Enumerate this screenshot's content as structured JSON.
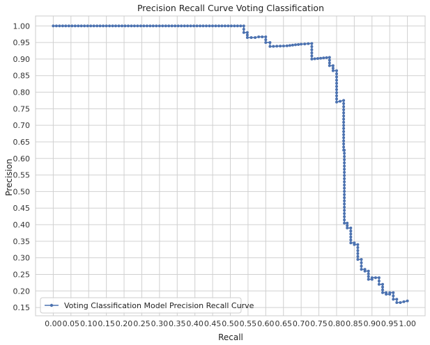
{
  "chart_data": {
    "type": "line",
    "title": "Precision Recall Curve Voting Classification",
    "xlabel": "Recall",
    "ylabel": "Precision",
    "xlim": [
      -0.05,
      1.05
    ],
    "ylim": [
      0.125,
      1.03
    ],
    "xticks": [
      "0.00",
      "0.05",
      "0.10",
      "0.15",
      "0.20",
      "0.25",
      "0.30",
      "0.35",
      "0.40",
      "0.45",
      "0.50",
      "0.55",
      "0.60",
      "0.65",
      "0.70",
      "0.75",
      "0.80",
      "0.85",
      "0.90",
      "0.95",
      "1.00"
    ],
    "yticks": [
      "0.15",
      "0.20",
      "0.25",
      "0.30",
      "0.35",
      "0.40",
      "0.45",
      "0.50",
      "0.55",
      "0.60",
      "0.65",
      "0.70",
      "0.75",
      "0.80",
      "0.85",
      "0.90",
      "0.95",
      "1.00"
    ],
    "grid": true,
    "legend_position": "lower-left",
    "series_color": "#4c72b0",
    "series": [
      {
        "name": "Voting Classification Model Precision Recall Curve",
        "x": [
          0.0,
          0.538,
          0.538,
          0.548,
          0.548,
          0.57,
          0.58,
          0.6,
          0.6,
          0.612,
          0.612,
          0.66,
          0.7,
          0.73,
          0.73,
          0.78,
          0.78,
          0.79,
          0.79,
          0.8,
          0.8,
          0.82,
          0.82,
          0.822,
          0.822,
          0.83,
          0.83,
          0.84,
          0.84,
          0.85,
          0.85,
          0.86,
          0.86,
          0.87,
          0.87,
          0.88,
          0.88,
          0.89,
          0.89,
          0.9,
          0.9,
          0.92,
          0.92,
          0.93,
          0.93,
          0.94,
          0.94,
          0.95,
          0.95,
          0.96,
          0.96,
          0.97,
          0.97,
          0.98,
          1.0
        ],
        "y": [
          1.0,
          1.0,
          0.98,
          0.98,
          0.965,
          0.965,
          0.967,
          0.967,
          0.95,
          0.95,
          0.938,
          0.94,
          0.945,
          0.947,
          0.9,
          0.905,
          0.88,
          0.88,
          0.865,
          0.865,
          0.77,
          0.775,
          0.625,
          0.625,
          0.405,
          0.405,
          0.39,
          0.39,
          0.345,
          0.345,
          0.34,
          0.34,
          0.295,
          0.295,
          0.265,
          0.265,
          0.26,
          0.26,
          0.235,
          0.235,
          0.24,
          0.24,
          0.22,
          0.22,
          0.195,
          0.195,
          0.19,
          0.19,
          0.195,
          0.195,
          0.175,
          0.175,
          0.165,
          0.165,
          0.17
        ]
      }
    ]
  }
}
